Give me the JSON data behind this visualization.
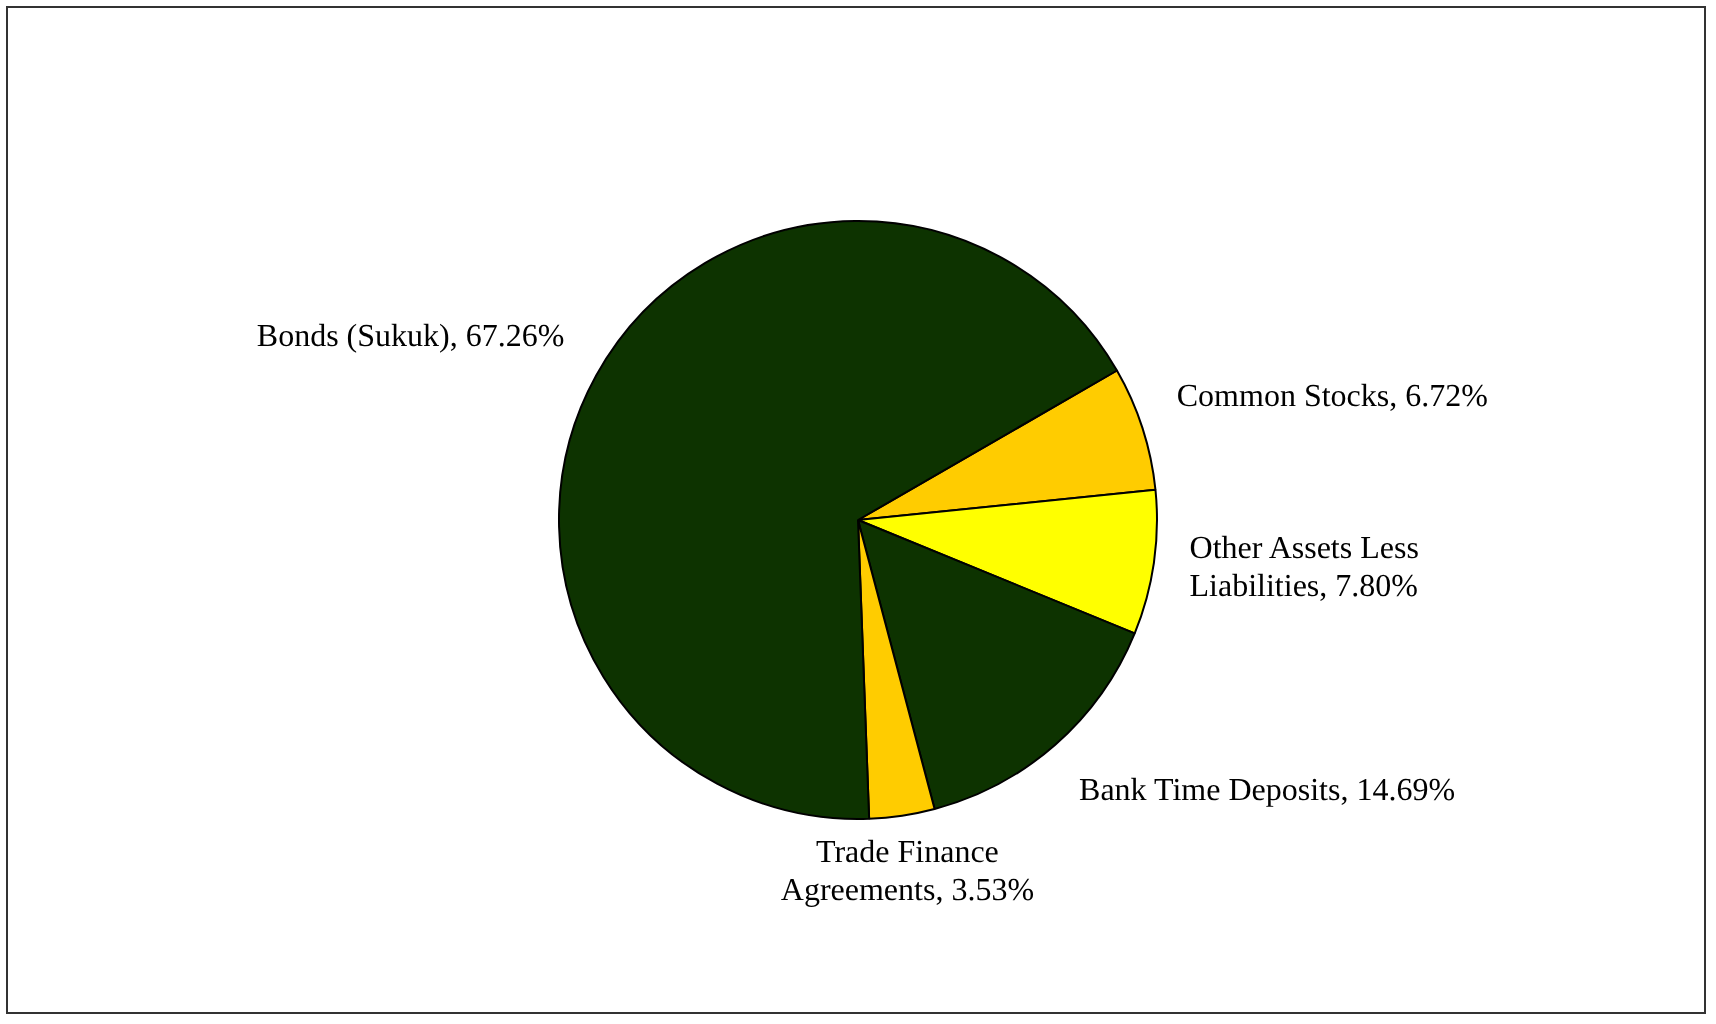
{
  "chart_data": {
    "type": "pie",
    "categories": [
      "Common Stocks",
      "Other Assets Less Liabilities",
      "Bank Time Deposits",
      "Trade Finance Agreements",
      "Bonds (Sukuk)"
    ],
    "values": [
      6.72,
      7.8,
      14.69,
      3.53,
      67.26
    ],
    "value_labels": [
      "6.72%",
      "7.80%",
      "14.69%",
      "3.53%",
      "67.26%"
    ],
    "colors": [
      "#ffcc00",
      "#ffff00",
      "#0d3300",
      "#ffcc00",
      "#0d3300"
    ],
    "legend": false
  }
}
